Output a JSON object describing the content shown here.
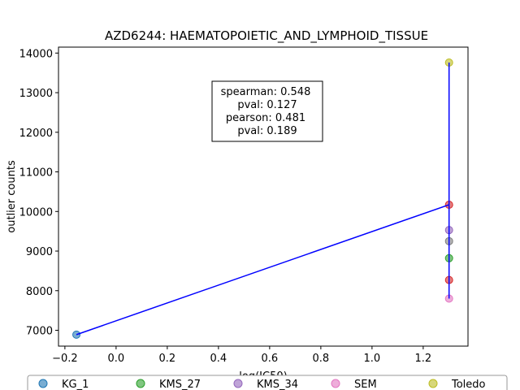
{
  "chart_data": {
    "type": "scatter",
    "title": "AZD6244: HAEMATOPOIETIC_AND_LYMPHOID_TISSUE",
    "xlabel": "log(IC50)",
    "ylabel": "outlier counts",
    "xlim": [
      -0.225,
      1.375
    ],
    "ylim": [
      6600,
      14150
    ],
    "xticks": [
      -0.2,
      0.0,
      0.2,
      0.4,
      0.6,
      0.8,
      1.0,
      1.2
    ],
    "xtick_labels": [
      "−0.2",
      "0.0",
      "0.2",
      "0.4",
      "0.6",
      "0.8",
      "1.0",
      "1.2"
    ],
    "yticks": [
      7000,
      8000,
      9000,
      10000,
      11000,
      12000,
      13000,
      14000
    ],
    "ytick_labels": [
      "7000",
      "8000",
      "9000",
      "10000",
      "11000",
      "12000",
      "13000",
      "14000"
    ],
    "grid": false,
    "points": [
      {
        "x": -0.155,
        "y": 6890,
        "color": "#1f77b4"
      },
      {
        "x": 1.301,
        "y": 10170,
        "color": "#d62728"
      },
      {
        "x": 1.301,
        "y": 9530,
        "color": "#9467bd"
      },
      {
        "x": 1.301,
        "y": 9250,
        "color": "#7f7f7f"
      },
      {
        "x": 1.301,
        "y": 8820,
        "color": "#2ca02c"
      },
      {
        "x": 1.301,
        "y": 8270,
        "color": "#d62728"
      },
      {
        "x": 1.301,
        "y": 7800,
        "color": "#e377c2"
      },
      {
        "x": 1.301,
        "y": 13760,
        "color": "#bcbd22"
      }
    ],
    "fit_line": {
      "color": "#0000ff",
      "points": [
        [
          -0.155,
          6890
        ],
        [
          1.301,
          10170
        ],
        [
          1.301,
          13760
        ],
        [
          1.301,
          7800
        ]
      ]
    },
    "stats_box": {
      "lines": [
        "spearman: 0.548",
        "pval: 0.127",
        "pearson: 0.481",
        "pval: 0.189"
      ]
    },
    "legend": {
      "placement": "bottom",
      "entries": [
        {
          "name": "KG_1",
          "color": "#1f77b4"
        },
        {
          "name": "KMS_27",
          "color": "#2ca02c"
        },
        {
          "name": "KMS_34",
          "color": "#9467bd"
        },
        {
          "name": "SEM",
          "color": "#e377c2"
        },
        {
          "name": "Toledo",
          "color": "#bcbd22"
        }
      ]
    }
  }
}
